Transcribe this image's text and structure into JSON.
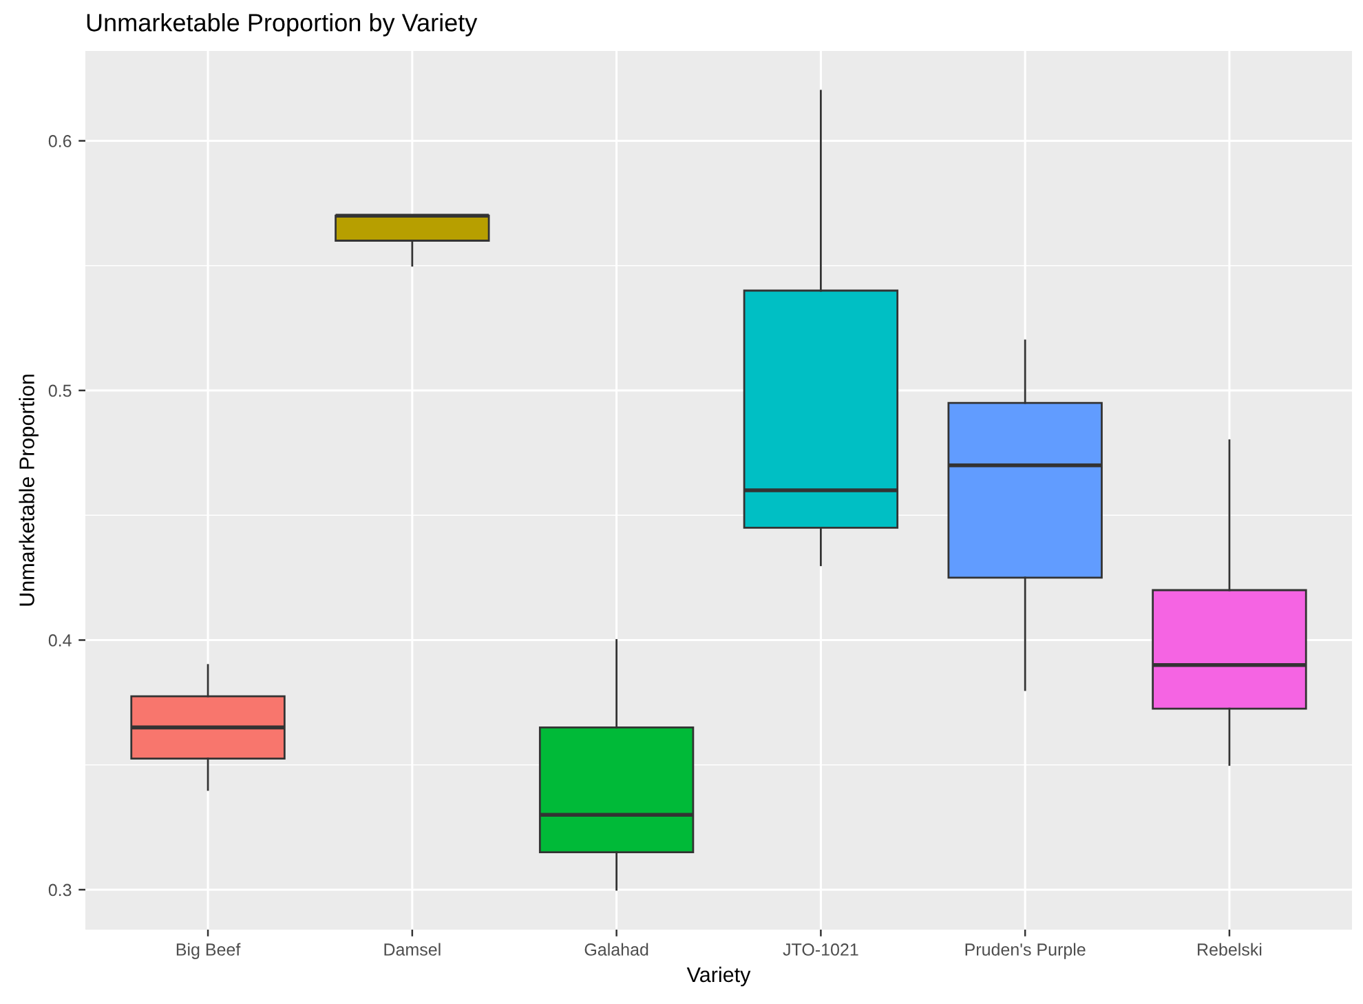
{
  "chart_data": {
    "type": "box",
    "title": "Unmarketable Proportion by Variety",
    "xlabel": "Variety",
    "ylabel": "Unmarketable Proportion",
    "categories": [
      "Big Beef",
      "Damsel",
      "Galahad",
      "JTO-1021",
      "Pruden's Purple",
      "Rebelski"
    ],
    "boxes": [
      {
        "low": 0.34,
        "q1": 0.3525,
        "median": 0.365,
        "q3": 0.3775,
        "high": 0.39
      },
      {
        "low": 0.55,
        "q1": 0.56,
        "median": 0.57,
        "q3": 0.57,
        "high": 0.57
      },
      {
        "low": 0.3,
        "q1": 0.315,
        "median": 0.33,
        "q3": 0.365,
        "high": 0.4
      },
      {
        "low": 0.43,
        "q1": 0.445,
        "median": 0.46,
        "q3": 0.54,
        "high": 0.62
      },
      {
        "low": 0.38,
        "q1": 0.425,
        "median": 0.47,
        "q3": 0.495,
        "high": 0.52
      },
      {
        "low": 0.35,
        "q1": 0.3725,
        "median": 0.39,
        "q3": 0.42,
        "high": 0.48
      }
    ],
    "colors": [
      "#f8766d",
      "#b79f00",
      "#00ba38",
      "#00bfc4",
      "#619cff",
      "#f564e3"
    ],
    "ylim": [
      0.284,
      0.636
    ],
    "yticks": [
      {
        "value": 0.3,
        "label": "0.3"
      },
      {
        "value": 0.4,
        "label": "0.4"
      },
      {
        "value": 0.5,
        "label": "0.5"
      },
      {
        "value": 0.6,
        "label": "0.6"
      }
    ],
    "grid": true,
    "legend": false
  }
}
